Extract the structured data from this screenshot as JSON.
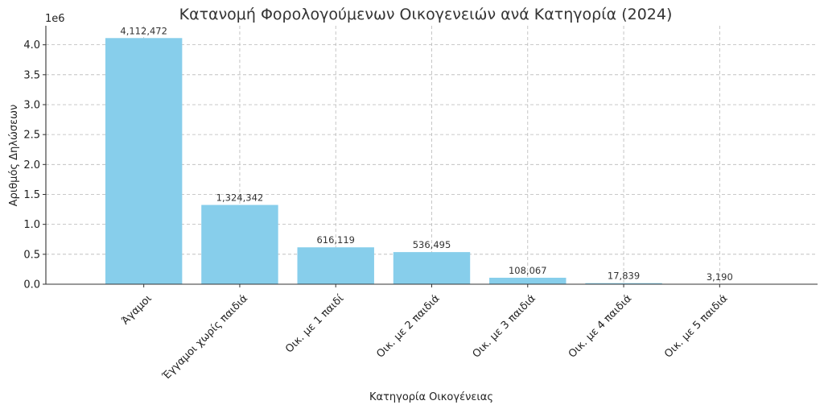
{
  "chart_data": {
    "type": "bar",
    "title": "Κατανομή Φορολογούμενων Οικογενειών ανά Κατηγορία (2024)",
    "xlabel": "Κατηγορία Οικογένειας",
    "ylabel": "Αριθμός Δηλώσεων",
    "y_offset_text": "1e6",
    "categories": [
      "Άγαμοι",
      "Έγγαμοι χωρίς παιδιά",
      "Οικ. με 1 παιδί",
      "Οικ. με 2 παιδιά",
      "Οικ. με 3 παιδιά",
      "Οικ. με 4 παιδιά",
      "Οικ. με 5 παιδιά"
    ],
    "values": [
      4112472,
      1324342,
      616119,
      536495,
      108067,
      17839,
      3190
    ],
    "value_labels": [
      "4,112,472",
      "1,324,342",
      "616,119",
      "536,495",
      "108,067",
      "17,839",
      "3,190"
    ],
    "y_ticks": [
      0.0,
      0.5,
      1.0,
      1.5,
      2.0,
      2.5,
      3.0,
      3.5,
      4.0
    ],
    "y_tick_labels": [
      "0.0",
      "0.5",
      "1.0",
      "1.5",
      "2.0",
      "2.5",
      "3.0",
      "3.5",
      "4.0"
    ],
    "ylim": [
      0,
      4318095.6
    ],
    "grid": true,
    "bar_color": "#87ceeb"
  }
}
